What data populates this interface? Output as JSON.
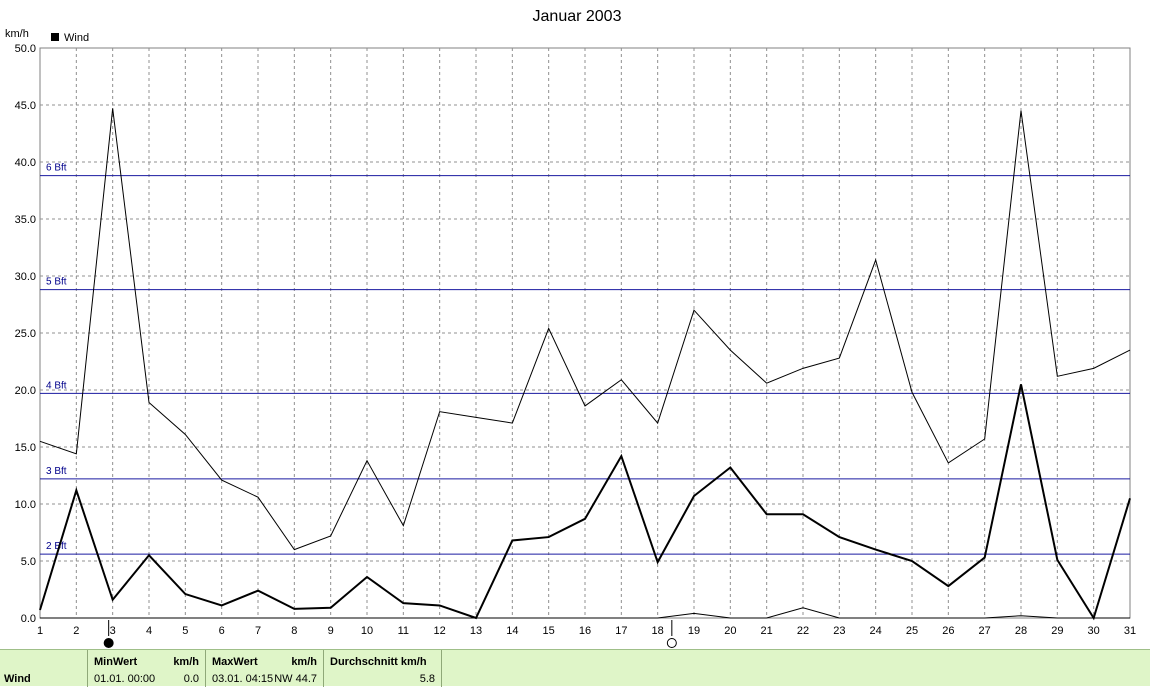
{
  "chart_data": {
    "type": "line",
    "title": "Januar 2003",
    "ylabel": "km/h",
    "legend": [
      {
        "name": "Wind",
        "color": "#000000"
      }
    ],
    "legend_placement": "top-left",
    "grid": true,
    "xlim": [
      1,
      31
    ],
    "ylim": [
      0,
      50
    ],
    "x_ticks": [
      1,
      2,
      3,
      4,
      5,
      6,
      7,
      8,
      9,
      10,
      11,
      12,
      13,
      14,
      15,
      16,
      17,
      18,
      19,
      20,
      21,
      22,
      23,
      24,
      25,
      26,
      27,
      28,
      29,
      30,
      31
    ],
    "y_ticks": [
      "0.0",
      "5.0",
      "10.0",
      "15.0",
      "20.0",
      "25.0",
      "30.0",
      "35.0",
      "40.0",
      "45.0",
      "50.0"
    ],
    "reference_lines": [
      {
        "label": "2 Bft",
        "value": 5.6
      },
      {
        "label": "3 Bft",
        "value": 12.2
      },
      {
        "label": "4 Bft",
        "value": 19.7
      },
      {
        "label": "5 Bft",
        "value": 28.8
      },
      {
        "label": "6 Bft",
        "value": 38.8
      }
    ],
    "reference_color": "#1a1aa0",
    "x": [
      1,
      2,
      3,
      4,
      5,
      6,
      7,
      8,
      9,
      10,
      11,
      12,
      13,
      14,
      15,
      16,
      17,
      18,
      19,
      20,
      21,
      22,
      23,
      24,
      25,
      26,
      27,
      28,
      29,
      30,
      31
    ],
    "series": [
      {
        "role": "max",
        "color": "#000000",
        "width": 1,
        "values": [
          15.5,
          14.4,
          44.7,
          18.9,
          16.1,
          12.1,
          10.6,
          6.0,
          7.2,
          13.8,
          8.1,
          18.1,
          17.6,
          17.1,
          25.4,
          18.6,
          20.9,
          17.1,
          27.0,
          23.5,
          20.6,
          21.9,
          22.8,
          31.4,
          19.8,
          13.6,
          15.7,
          44.5,
          21.2,
          21.9,
          23.5
        ]
      },
      {
        "role": "avg",
        "color": "#000000",
        "width": 2,
        "values": [
          0.7,
          11.2,
          1.6,
          5.5,
          2.1,
          1.1,
          2.4,
          0.8,
          0.9,
          3.6,
          1.3,
          1.1,
          0.0,
          6.8,
          7.1,
          8.7,
          14.2,
          4.9,
          10.7,
          13.2,
          9.1,
          9.1,
          7.1,
          6.0,
          5.0,
          2.8,
          5.3,
          20.5,
          5.1,
          0.0,
          10.5
        ]
      },
      {
        "role": "min",
        "color": "#000000",
        "width": 1,
        "values": [
          0,
          0,
          0,
          0,
          0,
          0,
          0,
          0,
          0,
          0,
          0,
          0,
          0,
          0,
          0,
          0,
          0,
          0,
          0.4,
          0,
          0,
          0.9,
          0,
          0,
          0,
          0,
          0,
          0.2,
          0,
          0,
          0
        ]
      }
    ],
    "moon_markers": [
      {
        "x": 3,
        "phase": "full-moon"
      },
      {
        "x": 18.5,
        "phase": "new-moon"
      }
    ]
  },
  "footer": {
    "row_label": "Wind",
    "min_header": "MinWert",
    "min_unit": "km/h",
    "min_time": "01.01.  00:00",
    "min_value": "0.0",
    "max_header": "MaxWert",
    "max_unit": "km/h",
    "max_time": "03.01.  04:15",
    "max_value": "NW 44.7",
    "avg_header": "Durchschnitt km/h",
    "avg_value": "5.8"
  }
}
